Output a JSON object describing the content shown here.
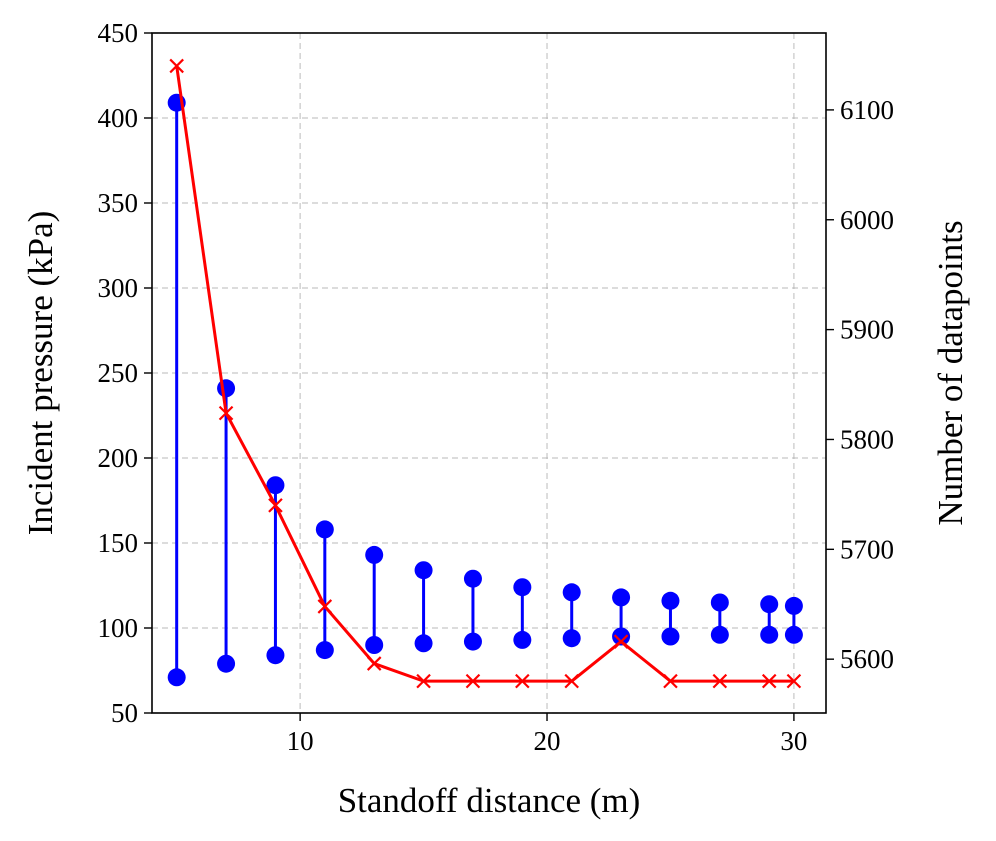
{
  "chart_data": {
    "type": "line",
    "xlabel": "Standoff distance (m)",
    "ylabel_left": "Incident pressure (kPa)",
    "ylabel_right": "Number of datapoints",
    "xlim": [
      4,
      31.3
    ],
    "ylim_left": [
      50,
      450
    ],
    "ylim_right": [
      5551,
      6170
    ],
    "x_ticks": [
      10,
      20,
      30
    ],
    "y_left_ticks": [
      50,
      100,
      150,
      200,
      250,
      300,
      350,
      400,
      450
    ],
    "y_right_ticks": [
      5600,
      5700,
      5800,
      5900,
      6000,
      6100
    ],
    "grid": true,
    "pressure_range": {
      "axis": "left",
      "color": "#0000ff",
      "x": [
        5,
        7,
        9,
        11,
        13,
        15,
        17,
        19,
        21,
        23,
        25,
        27,
        29,
        30
      ],
      "min": [
        71,
        79,
        84,
        87,
        90,
        91,
        92,
        93,
        94,
        95,
        95,
        96,
        96,
        96
      ],
      "max": [
        409,
        241,
        184,
        158,
        143,
        134,
        129,
        124,
        121,
        118,
        116,
        115,
        114,
        113
      ]
    },
    "datapoints": {
      "axis": "right",
      "color": "#ff0000",
      "marker": "x",
      "x": [
        5,
        7,
        9,
        11,
        13,
        15,
        17,
        19,
        21,
        23,
        25,
        27,
        29,
        30
      ],
      "y": [
        6140,
        5824,
        5740,
        5648,
        5596,
        5580,
        5580,
        5580,
        5580,
        5616,
        5580,
        5580,
        5580,
        5580
      ]
    }
  }
}
